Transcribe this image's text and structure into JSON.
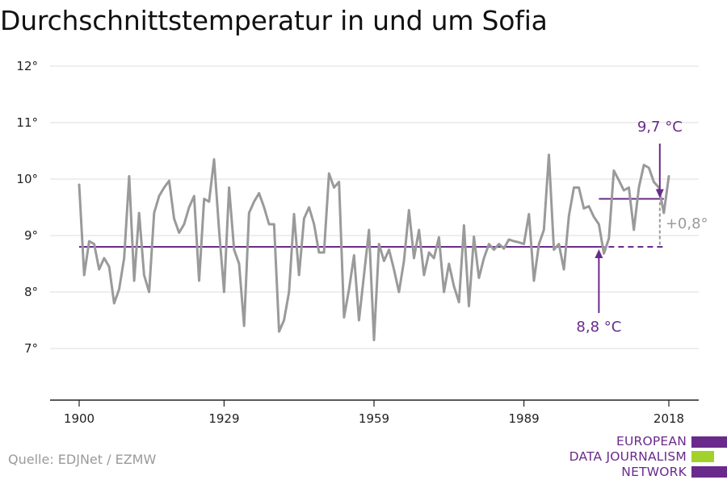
{
  "title": "Durchschnittstemperatur in und um Sofia",
  "source": "Quelle: EDJNet / EZMW",
  "logo": {
    "lines": [
      "EUROPEAN",
      "DATA JOURNALISM",
      "NETWORK"
    ],
    "colors": {
      "purple": "#6a2a8c",
      "green": "#a3d12c"
    }
  },
  "colors": {
    "series": "#9a9a9a",
    "baseline": "#6a2a8c",
    "recent": "#6a2a8c",
    "grid": "#dddddd"
  },
  "chart_data": {
    "type": "line",
    "title": "Durchschnittstemperatur in und um Sofia",
    "xlabel": "",
    "ylabel": "",
    "xlim": [
      1900,
      2018
    ],
    "ylim": [
      6.0,
      12.0
    ],
    "x_ticks": [
      1900,
      1929,
      1959,
      1989,
      2018
    ],
    "x_tick_labels": [
      "1900",
      "1929",
      "1959",
      "1989",
      "2018"
    ],
    "y_ticks": [
      7,
      8,
      9,
      10,
      11,
      12
    ],
    "y_tick_labels": [
      "7°",
      "8°",
      "9°",
      "10°",
      "11°",
      "12°"
    ],
    "grid": "horizontal",
    "series": [
      {
        "x": [
          1900,
          1901,
          1902,
          1903,
          1904,
          1905,
          1906,
          1907,
          1908,
          1909,
          1910,
          1911,
          1912,
          1913,
          1914,
          1915,
          1916,
          1917,
          1918,
          1919,
          1920,
          1921,
          1922,
          1923,
          1924,
          1925,
          1926,
          1927,
          1928,
          1929,
          1930,
          1931,
          1932,
          1933,
          1934,
          1935,
          1936,
          1937,
          1938,
          1939,
          1940,
          1941,
          1942,
          1943,
          1944,
          1945,
          1946,
          1947,
          1948,
          1949,
          1950,
          1951,
          1952,
          1953,
          1954,
          1955,
          1956,
          1957,
          1958,
          1959,
          1960,
          1961,
          1962,
          1963,
          1964,
          1965,
          1966,
          1967,
          1968,
          1969,
          1970,
          1971,
          1972,
          1973,
          1974,
          1975,
          1976,
          1977,
          1978,
          1979,
          1980,
          1981,
          1982,
          1983,
          1984,
          1985,
          1986,
          1987,
          1988,
          1989,
          1990,
          1991,
          1992,
          1993,
          1994,
          1995,
          1996,
          1997,
          1998,
          1999,
          2000,
          2001,
          2002,
          2003,
          2004,
          2005,
          2006,
          2007,
          2008,
          2009,
          2010,
          2011,
          2012,
          2013,
          2014,
          2015,
          2016,
          2017,
          2018
        ],
        "values": [
          9.9,
          8.3,
          8.9,
          8.85,
          8.4,
          8.6,
          8.45,
          7.8,
          8.05,
          8.6,
          10.05,
          8.2,
          9.4,
          8.3,
          8.0,
          9.4,
          9.7,
          9.85,
          9.97,
          9.3,
          9.05,
          9.2,
          9.5,
          9.7,
          8.2,
          9.65,
          9.6,
          10.35,
          9.1,
          8.0,
          9.85,
          8.75,
          8.5,
          7.4,
          9.4,
          9.6,
          9.75,
          9.5,
          9.2,
          9.2,
          7.3,
          7.5,
          8.0,
          9.38,
          8.3,
          9.3,
          9.5,
          9.2,
          8.7,
          8.7,
          10.1,
          9.85,
          9.95,
          7.55,
          8.05,
          8.65,
          7.5,
          8.3,
          9.1,
          7.15,
          8.85,
          8.55,
          8.75,
          8.4,
          8.0,
          8.55,
          9.45,
          8.6,
          9.1,
          8.3,
          8.7,
          8.6,
          8.97,
          8.0,
          8.5,
          8.1,
          7.82,
          9.18,
          7.75,
          8.98,
          8.25,
          8.6,
          8.85,
          8.75,
          8.85,
          8.77,
          8.93,
          8.9,
          8.88,
          8.85,
          9.38,
          8.2,
          8.85,
          9.1,
          10.43,
          8.75,
          8.85,
          8.4,
          9.35,
          9.85,
          9.85,
          9.48,
          9.52,
          9.33,
          9.2,
          8.68,
          8.95,
          10.15,
          9.98,
          9.8,
          9.85,
          9.1,
          9.85,
          10.25,
          10.2,
          9.95,
          9.85,
          9.4,
          10.05
        ]
      },
      {
        "type": "reference",
        "x": [
          1900,
          2017
        ],
        "values": [
          8.8,
          8.8
        ],
        "style": "solid until 2004, dashed after"
      },
      {
        "type": "reference",
        "x": [
          2004,
          2017
        ],
        "values": [
          9.65,
          9.65
        ]
      }
    ],
    "annotations": [
      {
        "text": "9,7 °C",
        "x": 2017,
        "y": 9.65
      },
      {
        "text": "8,8 °C",
        "x": 2004,
        "y": 8.8
      },
      {
        "text": "+0,8°",
        "x": 2017,
        "y": 9.2
      }
    ]
  }
}
